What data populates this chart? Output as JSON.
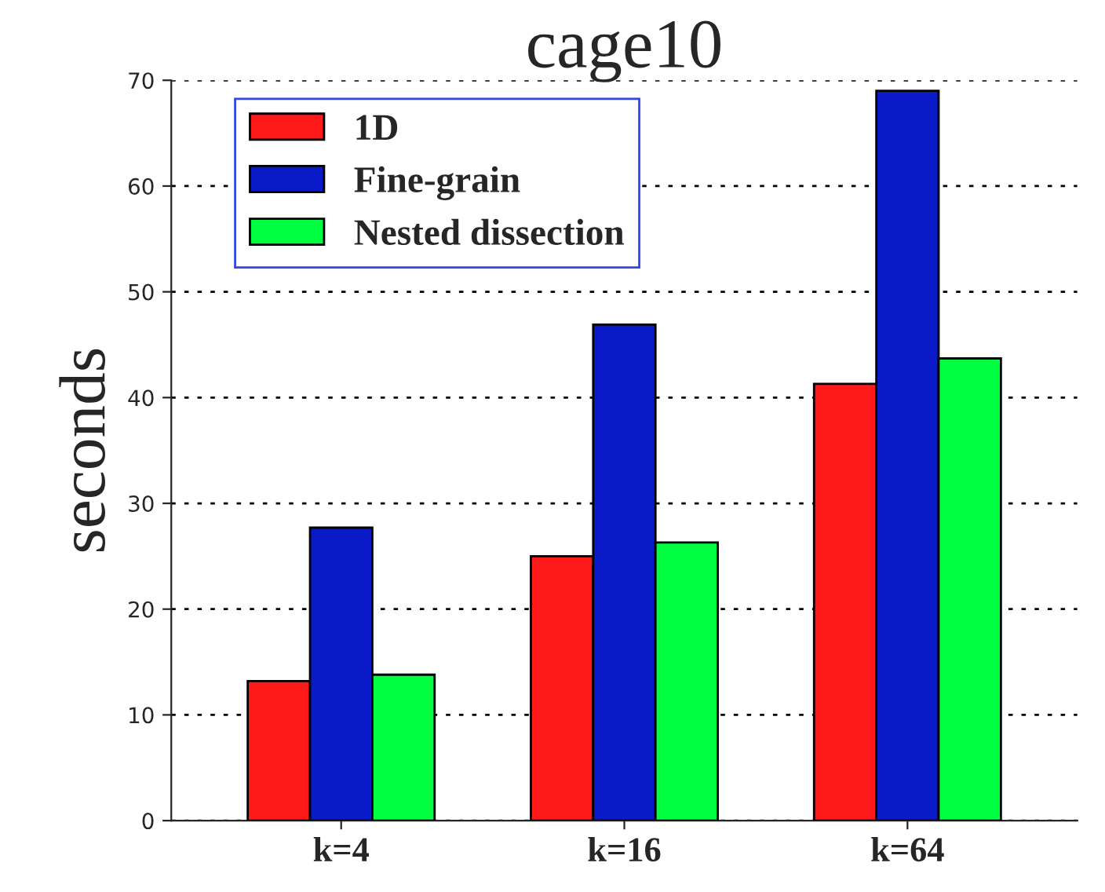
{
  "chart_data": {
    "type": "bar",
    "title": "cage10",
    "ylabel": "seconds",
    "categories": [
      "k=4",
      "k=16",
      "k=64"
    ],
    "series": [
      {
        "name": "1D",
        "color": "#ff1a1a",
        "values": [
          13.2,
          25.0,
          41.3
        ]
      },
      {
        "name": "Fine-grain",
        "color": "#0a1ac8",
        "values": [
          27.7,
          46.9,
          69.0
        ]
      },
      {
        "name": "Nested dissection",
        "color": "#00ff40",
        "values": [
          13.8,
          26.3,
          43.7
        ]
      }
    ],
    "ylim": [
      0,
      70
    ],
    "yticks": [
      0,
      10,
      20,
      30,
      40,
      50,
      60,
      70
    ],
    "grid": "y",
    "legend": "top left"
  }
}
